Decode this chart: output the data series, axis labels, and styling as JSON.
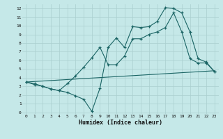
{
  "bg_color": "#c5e8e8",
  "grid_color": "#aacfcf",
  "line_color": "#1a6464",
  "xlabel": "Humidex (Indice chaleur)",
  "xlim": [
    -0.5,
    23.5
  ],
  "ylim": [
    -0.2,
    12.5
  ],
  "xticks": [
    0,
    1,
    2,
    3,
    4,
    5,
    6,
    7,
    8,
    9,
    10,
    11,
    12,
    13,
    14,
    15,
    16,
    17,
    18,
    19,
    20,
    21,
    22,
    23
  ],
  "yticks": [
    0,
    1,
    2,
    3,
    4,
    5,
    6,
    7,
    8,
    9,
    10,
    11,
    12
  ],
  "line1_x": [
    0,
    1,
    2,
    3,
    4,
    5,
    6,
    7,
    8,
    9,
    10,
    11,
    12,
    13,
    14,
    15,
    16,
    17,
    18,
    19,
    20,
    21,
    22,
    23
  ],
  "line1_y": [
    3.5,
    3.2,
    3.0,
    2.7,
    2.5,
    2.3,
    1.9,
    1.5,
    0.1,
    2.8,
    7.5,
    8.6,
    7.5,
    9.9,
    9.8,
    9.9,
    10.5,
    12.1,
    12.0,
    11.5,
    9.3,
    6.2,
    5.8,
    4.7
  ],
  "line2_x": [
    0,
    23
  ],
  "line2_y": [
    3.5,
    4.8
  ],
  "line3_x": [
    0,
    1,
    2,
    3,
    4,
    5,
    6,
    7,
    8,
    9,
    10,
    11,
    12,
    13,
    14,
    15,
    16,
    17,
    18,
    19,
    20,
    21,
    22,
    23
  ],
  "line3_y": [
    3.5,
    3.3,
    3.0,
    2.7,
    2.5,
    3.3,
    4.2,
    5.2,
    6.3,
    7.5,
    5.5,
    5.5,
    6.5,
    8.5,
    8.5,
    9.0,
    9.3,
    9.8,
    11.5,
    9.3,
    6.2,
    5.7,
    5.7,
    4.7
  ]
}
